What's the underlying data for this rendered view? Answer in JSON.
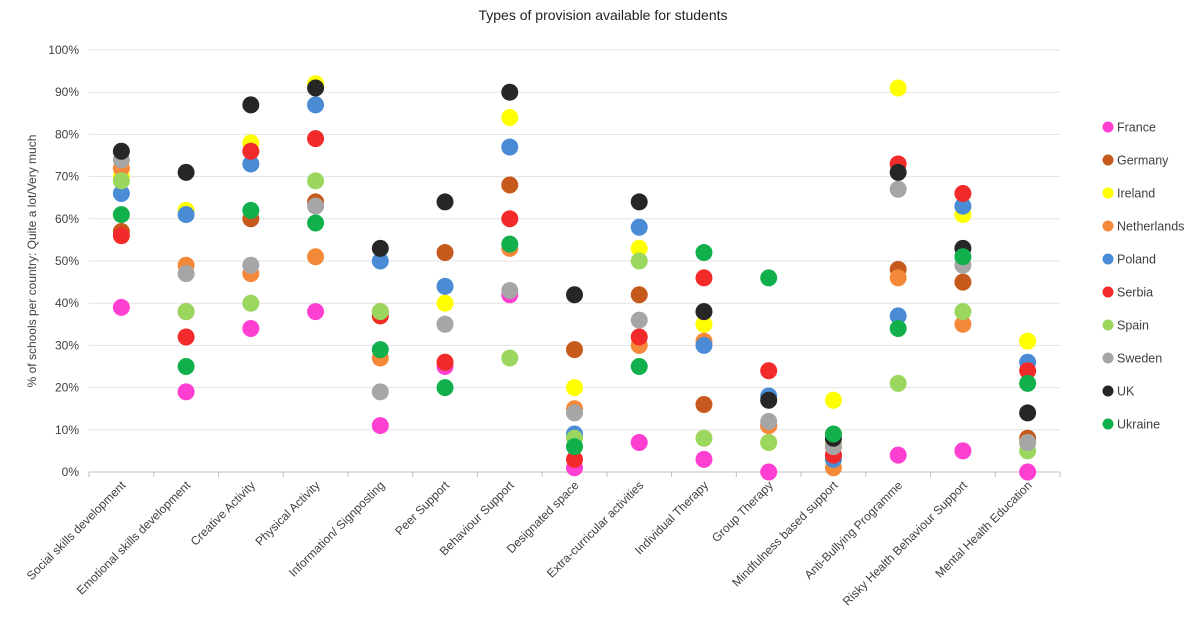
{
  "chart_data": {
    "type": "scatter",
    "title": "Types of provision available for students",
    "xlabel": "",
    "ylabel": "% of schools per country: Quite a lot/Very much",
    "ylim": [
      0,
      100
    ],
    "y_ticks": [
      "0%",
      "10%",
      "20%",
      "30%",
      "40%",
      "50%",
      "60%",
      "70%",
      "80%",
      "90%",
      "100%"
    ],
    "grid": "horizontal",
    "legend_position": "right",
    "categories": [
      "Social skills development",
      "Emotional skills development",
      "Creative Activity",
      "Physical Activity",
      "Information/ Signposting",
      "Peer Support",
      "Behaviour Support",
      "Designated space",
      "Extra-curricular activities",
      "Individual Therapy",
      "Group Therapy",
      "Mindfulness based support",
      "Anti-Bullying Programme",
      "Risky Health Behaviour Support",
      "Mental Health Education"
    ],
    "series": [
      {
        "name": "France",
        "color": "#ff3fd2",
        "values": [
          39,
          19,
          34,
          38,
          11,
          25,
          42,
          1,
          7,
          3,
          0,
          4,
          4,
          5,
          0
        ]
      },
      {
        "name": "Germany",
        "color": "#c65a1c",
        "values": [
          57,
          38,
          60,
          64,
          38,
          52,
          68,
          29,
          42,
          16,
          11,
          6,
          48,
          45,
          8
        ]
      },
      {
        "name": "Ireland",
        "color": "#ffff00",
        "values": [
          70,
          62,
          78,
          92,
          37,
          40,
          84,
          20,
          53,
          35,
          7,
          17,
          91,
          61,
          31
        ]
      },
      {
        "name": "Netherlands",
        "color": "#f5893a",
        "values": [
          72,
          49,
          47,
          51,
          27,
          26,
          53,
          15,
          30,
          31,
          11,
          1,
          46,
          35,
          7
        ]
      },
      {
        "name": "Poland",
        "color": "#4a8bd6",
        "values": [
          66,
          61,
          73,
          87,
          50,
          44,
          77,
          9,
          58,
          30,
          18,
          3,
          37,
          63,
          26
        ]
      },
      {
        "name": "Serbia",
        "color": "#f22a2a",
        "values": [
          56,
          32,
          76,
          79,
          37,
          26,
          60,
          3,
          32,
          46,
          24,
          4,
          73,
          66,
          24
        ]
      },
      {
        "name": "Spain",
        "color": "#9bd65f",
        "values": [
          69,
          38,
          40,
          69,
          38,
          35,
          27,
          8,
          50,
          8,
          7,
          7,
          21,
          38,
          5
        ]
      },
      {
        "name": "Sweden",
        "color": "#a6a6a6",
        "values": [
          74,
          47,
          49,
          63,
          19,
          35,
          43,
          14,
          36,
          38,
          12,
          6,
          67,
          49,
          7
        ]
      },
      {
        "name": "UK",
        "color": "#262626",
        "values": [
          76,
          71,
          87,
          91,
          53,
          64,
          90,
          42,
          64,
          38,
          17,
          8,
          71,
          53,
          14
        ]
      },
      {
        "name": "Ukraine",
        "color": "#12b04c",
        "values": [
          61,
          25,
          62,
          59,
          29,
          20,
          54,
          6,
          25,
          52,
          46,
          9,
          34,
          51,
          21
        ]
      }
    ]
  }
}
